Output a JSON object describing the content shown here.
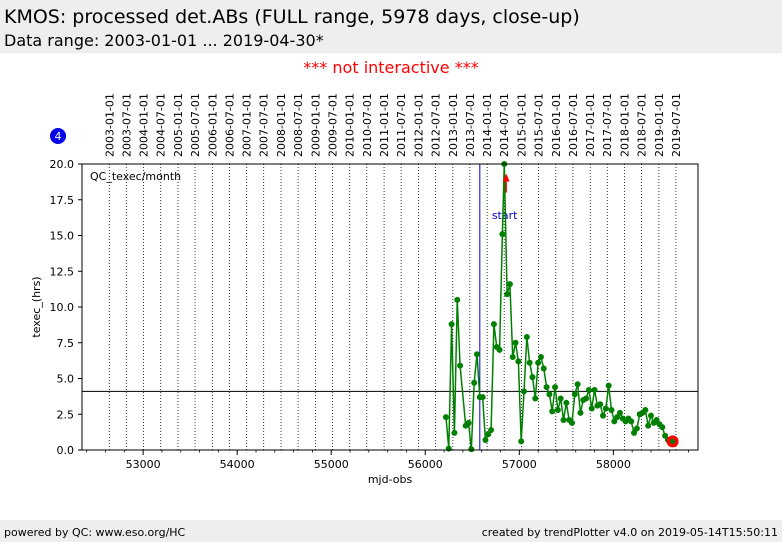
{
  "header": {
    "title": "KMOS: processed det.ABs (FULL range, 5978 days, close-up)",
    "subtitle": "Data range: 2003-01-01 ... 2019-04-30*"
  },
  "notice": "*** not interactive ***",
  "badge": "4",
  "footer": {
    "left": "powered by QC: www.eso.org/HC",
    "right": "created by trendPlotter v4.0 on 2019-05-14T15:50:11"
  },
  "colors": {
    "series": "#008000",
    "start_marker": "#0000cc",
    "arrow": "#ff0000",
    "latest": "#ff0000",
    "badge": "#0000ee"
  },
  "chart_data": {
    "type": "line",
    "xlabel": "mjd-obs",
    "ylabel": "texec_(hrs)",
    "panel_label": "QC_texec/month",
    "xlim": [
      52350,
      58900
    ],
    "ylim": [
      0,
      20
    ],
    "x_ticks": [
      53000,
      54000,
      55000,
      56000,
      57000,
      58000
    ],
    "y_ticks": [
      0.0,
      2.5,
      5.0,
      7.5,
      10.0,
      12.5,
      15.0,
      17.5,
      20.0
    ],
    "y_tick_labels": [
      "0.0",
      "2.5",
      "5.0",
      "7.5",
      "10.0",
      "12.5",
      "15.0",
      "17.5",
      "20.0"
    ],
    "date_ticks": [
      {
        "label": "2003-01-01",
        "mjd": 52640
      },
      {
        "label": "2003-07-01",
        "mjd": 52821
      },
      {
        "label": "2004-01-01",
        "mjd": 53005
      },
      {
        "label": "2004-07-01",
        "mjd": 53187
      },
      {
        "label": "2005-01-01",
        "mjd": 53371
      },
      {
        "label": "2005-07-01",
        "mjd": 53552
      },
      {
        "label": "2006-01-01",
        "mjd": 53736
      },
      {
        "label": "2006-07-01",
        "mjd": 53917
      },
      {
        "label": "2007-01-01",
        "mjd": 54101
      },
      {
        "label": "2007-07-01",
        "mjd": 54282
      },
      {
        "label": "2008-01-01",
        "mjd": 54466
      },
      {
        "label": "2008-07-01",
        "mjd": 54648
      },
      {
        "label": "2009-01-01",
        "mjd": 54832
      },
      {
        "label": "2009-07-01",
        "mjd": 55013
      },
      {
        "label": "2010-01-01",
        "mjd": 55197
      },
      {
        "label": "2010-07-01",
        "mjd": 55378
      },
      {
        "label": "2011-01-01",
        "mjd": 55562
      },
      {
        "label": "2011-07-01",
        "mjd": 55743
      },
      {
        "label": "2012-01-01",
        "mjd": 55927
      },
      {
        "label": "2012-07-01",
        "mjd": 56109
      },
      {
        "label": "2013-01-01",
        "mjd": 56293
      },
      {
        "label": "2013-07-01",
        "mjd": 56474
      },
      {
        "label": "2014-01-01",
        "mjd": 56658
      },
      {
        "label": "2014-07-01",
        "mjd": 56839
      },
      {
        "label": "2015-01-01",
        "mjd": 57023
      },
      {
        "label": "2015-07-01",
        "mjd": 57204
      },
      {
        "label": "2016-01-01",
        "mjd": 57388
      },
      {
        "label": "2016-07-01",
        "mjd": 57570
      },
      {
        "label": "2017-01-01",
        "mjd": 57754
      },
      {
        "label": "2017-07-01",
        "mjd": 57935
      },
      {
        "label": "2018-01-01",
        "mjd": 58119
      },
      {
        "label": "2018-07-01",
        "mjd": 58300
      },
      {
        "label": "2019-01-01",
        "mjd": 58484
      },
      {
        "label": "2019-07-01",
        "mjd": 58665
      }
    ],
    "reference_line": 4.1,
    "start_marker": {
      "mjd": 56580,
      "label": "start"
    },
    "arrow": {
      "mjd": 56860,
      "y_from": 18.0,
      "y_to": 19.2
    },
    "latest_point": {
      "mjd": 58630,
      "y": 0.6
    },
    "series": [
      {
        "x": [
          56220,
          56250,
          56280,
          56310,
          56340,
          56370,
          56430,
          56460,
          56490,
          56520,
          56550,
          56580,
          56610,
          56640,
          56670,
          56700,
          56730,
          56760,
          56790,
          56820,
          56840,
          56870,
          56900,
          56930,
          56960,
          56990,
          57020,
          57050,
          57080,
          57110,
          57140,
          57170,
          57200,
          57230,
          57260,
          57290,
          57320,
          57350,
          57380,
          57410,
          57440,
          57470,
          57500,
          57530,
          57560,
          57590,
          57620,
          57650,
          57680,
          57710,
          57740,
          57770,
          57800,
          57830,
          57860,
          57890,
          57920,
          57950,
          57980,
          58010,
          58040,
          58070,
          58100,
          58130,
          58160,
          58190,
          58220,
          58250,
          58280,
          58310,
          58340,
          58370,
          58400,
          58430,
          58460,
          58490,
          58520,
          58550,
          58580,
          58610
        ],
        "y": [
          2.3,
          0.1,
          8.8,
          1.2,
          10.5,
          5.9,
          1.7,
          1.9,
          0.05,
          4.7,
          6.7,
          3.7,
          3.7,
          0.7,
          1.1,
          1.4,
          8.8,
          7.2,
          7.0,
          15.1,
          20.0,
          10.9,
          11.6,
          6.5,
          7.5,
          6.2,
          0.6,
          4.1,
          7.9,
          6.1,
          5.1,
          3.6,
          6.1,
          6.5,
          5.7,
          4.4,
          3.9,
          2.7,
          4.4,
          2.8,
          3.6,
          2.1,
          3.3,
          2.1,
          1.9,
          3.9,
          4.6,
          2.6,
          3.5,
          3.6,
          4.2,
          2.9,
          4.2,
          3.1,
          3.2,
          2.4,
          2.9,
          4.5,
          2.8,
          2.0,
          2.3,
          2.6,
          2.2,
          2.0,
          2.2,
          2.0,
          1.2,
          1.5,
          2.5,
          2.6,
          2.8,
          1.7,
          2.4,
          1.9,
          2.1,
          1.8,
          1.6,
          1.0,
          0.7,
          0.6
        ]
      }
    ]
  }
}
